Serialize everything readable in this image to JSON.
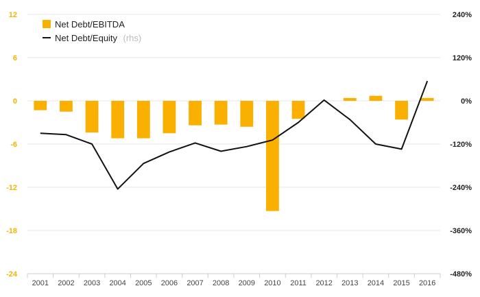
{
  "chart_data": {
    "type": "bar",
    "categories": [
      "2001",
      "2002",
      "2003",
      "2004",
      "2005",
      "2006",
      "2007",
      "2008",
      "2009",
      "2010",
      "2011",
      "2012",
      "2013",
      "2014",
      "2015",
      "2016"
    ],
    "series": [
      {
        "name": "Net Debt/EBITDA",
        "type": "bar",
        "axis": "left",
        "color": "#f9b000",
        "values": [
          -1.3,
          -1.5,
          -4.4,
          -5.2,
          -5.2,
          -4.5,
          -3.4,
          -3.3,
          -3.6,
          -15.3,
          -2.5,
          0.0,
          0.4,
          0.7,
          -2.6,
          0.4
        ]
      },
      {
        "name": "Net Debt/Equity",
        "rhs_suffix": "(rhs)",
        "type": "line",
        "axis": "right",
        "color": "#111111",
        "values": [
          -90,
          -94,
          -120,
          -245,
          -174,
          -142,
          -117,
          -140,
          -127,
          -109,
          -60,
          2,
          -52,
          -120,
          -134,
          55
        ]
      }
    ],
    "left_axis": {
      "min": -24,
      "max": 12,
      "ticks": [
        "12",
        "6",
        "0",
        "-6",
        "-12",
        "-18",
        "-24"
      ],
      "tick_values": [
        12,
        6,
        0,
        -6,
        -12,
        -18,
        -24
      ],
      "color": "#f2b400"
    },
    "right_axis": {
      "min": -480,
      "max": 240,
      "ticks": [
        "240%",
        "120%",
        "0%",
        "-120%",
        "-240%",
        "-360%",
        "-480%"
      ],
      "tick_values": [
        240,
        120,
        0,
        -120,
        -240,
        -360,
        -480
      ]
    },
    "legend_position": "top-left",
    "grid": true
  }
}
